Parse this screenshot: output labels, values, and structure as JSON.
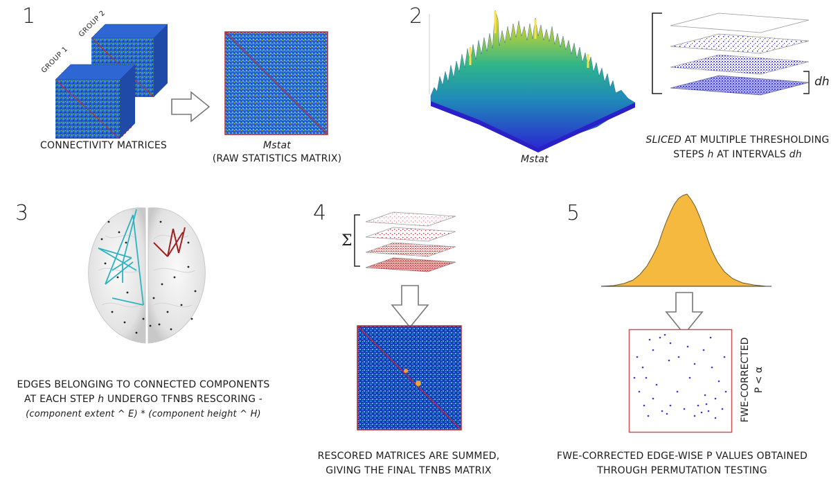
{
  "panel1": {
    "number": "1",
    "group1": "GROUP 1",
    "group2": "GROUP 2",
    "caption": "CONNECTIVITY MATRICES",
    "mstat": "Mstat",
    "raw": "(RAW STATISTICS MATRIX)"
  },
  "panel2": {
    "number": "2",
    "mstat": "Mstat",
    "dh": "dh",
    "caption_l1_a": "SLICED",
    "caption_l1_b": " AT MULTIPLE THRESHOLDING",
    "caption_l2_a": "STEPS ",
    "caption_l2_b": "h",
    "caption_l2_c": " AT INTERVALS ",
    "caption_l2_d": "dh"
  },
  "panel3": {
    "number": "3",
    "caption_l1": "EDGES BELONGING TO CONNECTED COMPONENTS",
    "caption_l2_a": "AT EACH STEP ",
    "caption_l2_b": "h",
    "caption_l2_c": " UNDERGO TFNBS RESCORING -",
    "caption_l3": "(component extent ^ E) * (component height ^ H)"
  },
  "panel4": {
    "number": "4",
    "sigma": "Σ",
    "caption_l1": "RESCORED MATRICES ARE SUMMED,",
    "caption_l2": "GIVING THE FINAL TFNBS MATRIX"
  },
  "panel5": {
    "number": "5",
    "axis_label_l1": "FWE-CORRECTED",
    "axis_label_l2": "P < α",
    "caption_l1": "FWE-CORRECTED EDGE-WISE P VALUES OBTAINED",
    "caption_l2": "THROUGH PERMUTATION TESTING"
  },
  "colors": {
    "matrix_blue": "#1f4fc4",
    "diag_red": "#c0272d",
    "blue_edge": "#2db3c0",
    "red_edge": "#a02020",
    "hist_fill": "#f6b940",
    "dot_blue": "#3a3ad6"
  }
}
